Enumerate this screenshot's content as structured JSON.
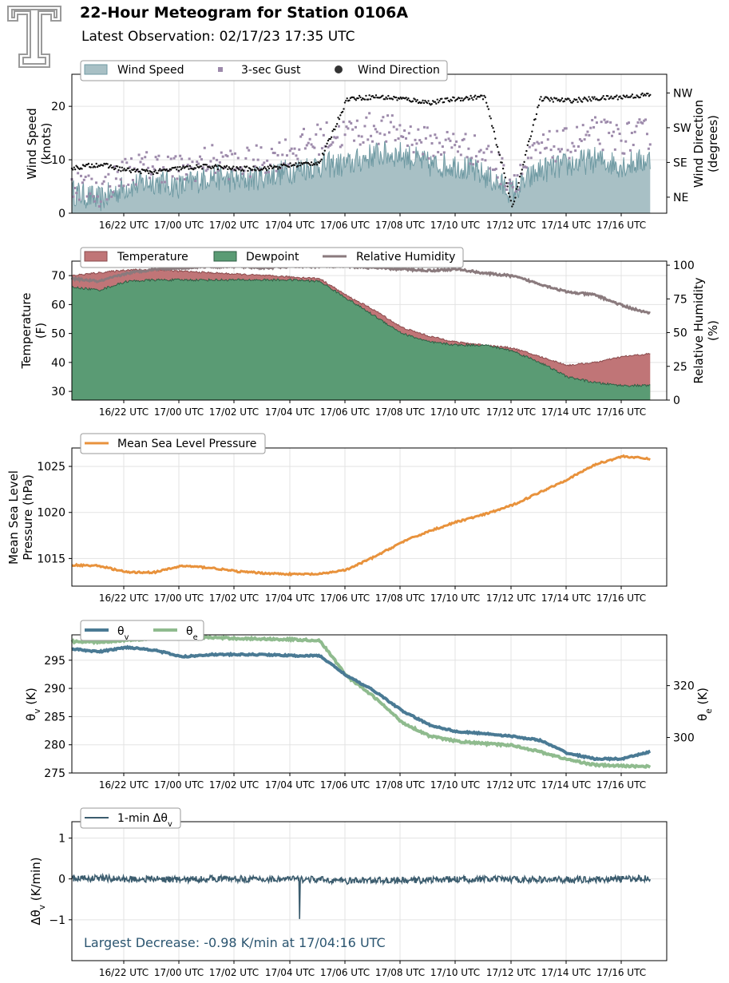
{
  "header": {
    "title": "22-Hour Meteogram for Station 0106A",
    "subtitle": "Latest Observation: 02/17/23 17:35 UTC",
    "logo_name": "texas-tech-double-t-logo"
  },
  "colors": {
    "wind_speed": "#6f9aa3",
    "gust": "#9d8aab",
    "wind_dir": "#111111",
    "temperature": "#c07577",
    "dewpoint": "#5a9b74",
    "rh": "#8a7a7d",
    "pressure": "#e8923c",
    "theta_v": "#4a7a94",
    "theta_e": "#8fbb8e",
    "delta_theta": "#3b5c6e",
    "annotation": "#2b5570"
  },
  "chart_data": [
    {
      "id": "wind",
      "type": "area",
      "time_ticks": [
        "16/22 UTC",
        "17/00 UTC",
        "17/02 UTC",
        "17/04 UTC",
        "17/06 UTC",
        "17/08 UTC",
        "17/10 UTC",
        "17/12 UTC",
        "17/14 UTC",
        "17/16 UTC"
      ],
      "ylabel": "Wind Speed\n(knots)",
      "ylabel_right": "Wind Direction\n(degrees)",
      "ylim": [
        0,
        26
      ],
      "yticks": [
        "0",
        "10",
        "20"
      ],
      "y2ticks": [
        "NE",
        "SE",
        "SW",
        "NW"
      ],
      "legend": [
        "Wind Speed",
        "3-sec Gust",
        "Wind Direction"
      ],
      "x_hours": [
        0,
        1,
        2,
        3,
        4,
        5,
        6,
        7,
        8,
        9,
        10,
        11,
        12,
        13,
        14,
        15,
        16,
        17,
        18,
        19,
        20,
        21
      ],
      "series": [
        {
          "name": "Wind Speed",
          "values": [
            4,
            2.5,
            5,
            6,
            5,
            7,
            6,
            7,
            8,
            9,
            9,
            11,
            11,
            9,
            9,
            7,
            4,
            8,
            9,
            10,
            9,
            10
          ]
        },
        {
          "name": "3-sec Gust",
          "values": [
            6,
            4,
            8,
            9,
            8,
            10,
            9,
            10,
            12,
            14,
            15,
            16,
            15,
            13,
            13,
            11,
            6,
            12,
            13,
            15,
            14,
            15
          ]
        },
        {
          "name": "Wind Direction",
          "values": [
            120,
            130,
            115,
            110,
            120,
            125,
            118,
            120,
            128,
            135,
            300,
            305,
            300,
            290,
            300,
            305,
            20,
            300,
            295,
            300,
            305,
            310
          ]
        }
      ]
    },
    {
      "id": "temperature",
      "type": "area",
      "time_ticks": [
        "16/22 UTC",
        "17/00 UTC",
        "17/02 UTC",
        "17/04 UTC",
        "17/06 UTC",
        "17/08 UTC",
        "17/10 UTC",
        "17/12 UTC",
        "17/14 UTC",
        "17/16 UTC"
      ],
      "ylabel": "Temperature\n(F)",
      "ylabel_right": "Relative Humidity\n(%)",
      "ylim": [
        27,
        75
      ],
      "yticks": [
        "30",
        "40",
        "50",
        "60",
        "70"
      ],
      "y2lim": [
        0,
        103
      ],
      "y2ticks": [
        "0",
        "25",
        "50",
        "75",
        "100"
      ],
      "legend": [
        "Temperature",
        "Dewpoint",
        "Relative Humidity"
      ],
      "x_hours": [
        0,
        1,
        2,
        3,
        4,
        5,
        6,
        7,
        8,
        9,
        10,
        11,
        12,
        13,
        14,
        15,
        16,
        17,
        18,
        19,
        20,
        21
      ],
      "series": [
        {
          "name": "Temperature",
          "values": [
            70,
            71,
            72,
            72,
            71.5,
            71,
            70.5,
            70,
            69.5,
            69,
            63,
            58,
            52,
            49,
            47,
            46,
            45,
            42,
            39,
            40,
            42,
            43
          ]
        },
        {
          "name": "Dewpoint",
          "values": [
            66,
            65,
            68,
            68.5,
            68.5,
            68.5,
            68.5,
            68.5,
            68.5,
            68,
            62,
            56,
            50,
            47,
            46,
            46,
            44,
            40,
            35,
            33,
            32,
            32
          ]
        },
        {
          "name": "Relative Humidity",
          "values": [
            90,
            88,
            94,
            97,
            98,
            99,
            99,
            98,
            99,
            99,
            99,
            98,
            97,
            96,
            97,
            94,
            92,
            86,
            80,
            78,
            70,
            64
          ]
        }
      ]
    },
    {
      "id": "pressure",
      "type": "line",
      "time_ticks": [
        "16/22 UTC",
        "17/00 UTC",
        "17/02 UTC",
        "17/04 UTC",
        "17/06 UTC",
        "17/08 UTC",
        "17/10 UTC",
        "17/12 UTC",
        "17/14 UTC",
        "17/16 UTC"
      ],
      "ylabel": "Mean Sea Level\nPressure (hPa)",
      "ylim": [
        1012,
        1027
      ],
      "yticks": [
        "1015",
        "1020",
        "1025"
      ],
      "legend": [
        "Mean Sea Level Pressure"
      ],
      "x_hours": [
        0,
        1,
        2,
        3,
        4,
        5,
        6,
        7,
        8,
        9,
        10,
        11,
        12,
        13,
        14,
        15,
        16,
        17,
        18,
        19,
        20,
        21
      ],
      "series": [
        {
          "name": "Mean Sea Level Pressure",
          "values": [
            1014.3,
            1014.2,
            1013.5,
            1013.5,
            1014.2,
            1014.0,
            1013.6,
            1013.4,
            1013.3,
            1013.3,
            1013.8,
            1015.2,
            1016.8,
            1018.0,
            1019.0,
            1019.8,
            1020.8,
            1022.2,
            1023.6,
            1025.2,
            1026.1,
            1025.8
          ]
        }
      ]
    },
    {
      "id": "theta",
      "type": "line",
      "time_ticks": [
        "16/22 UTC",
        "17/00 UTC",
        "17/02 UTC",
        "17/04 UTC",
        "17/06 UTC",
        "17/08 UTC",
        "17/10 UTC",
        "17/12 UTC",
        "17/14 UTC",
        "17/16 UTC"
      ],
      "ylabel": "θv (K)",
      "ylabel_right": "θe (K)",
      "ylim": [
        275,
        299.5
      ],
      "yticks": [
        "275",
        "280",
        "285",
        "290",
        "295"
      ],
      "y2lim": [
        286.3,
        339.6
      ],
      "y2ticks": [
        "300",
        "320"
      ],
      "legend": [
        "θv",
        "θe"
      ],
      "x_hours": [
        0,
        1,
        2,
        3,
        4,
        5,
        6,
        7,
        8,
        9,
        10,
        11,
        12,
        13,
        14,
        15,
        16,
        17,
        18,
        19,
        20,
        21
      ],
      "series": [
        {
          "name": "θv",
          "values": [
            297.0,
            296.5,
            297.3,
            296.8,
            295.6,
            296.0,
            296.0,
            296.0,
            295.8,
            295.8,
            292.2,
            289.5,
            286.0,
            283.5,
            282.3,
            282.0,
            281.5,
            280.8,
            278.5,
            277.5,
            277.5,
            278.8
          ]
        },
        {
          "name": "θe",
          "values": [
            337.0,
            336.8,
            337.6,
            338.2,
            338.4,
            338.6,
            338.2,
            338.0,
            337.8,
            337.4,
            323.5,
            315.4,
            305.8,
            300.5,
            298.5,
            297.6,
            297.0,
            294.5,
            291.5,
            289.4,
            289.0,
            288.8
          ]
        }
      ]
    },
    {
      "id": "delta_theta",
      "type": "line",
      "time_ticks": [
        "16/22 UTC",
        "17/00 UTC",
        "17/02 UTC",
        "17/04 UTC",
        "17/06 UTC",
        "17/08 UTC",
        "17/10 UTC",
        "17/12 UTC",
        "17/14 UTC",
        "17/16 UTC"
      ],
      "ylabel": "Δθv (K/min)",
      "ylim": [
        -2.0,
        1.4
      ],
      "yticks": [
        "−1",
        "0",
        "1"
      ],
      "legend": [
        "1-min Δθv"
      ],
      "annotation": "Largest Decrease: -0.98 K/min at 17/04:16 UTC",
      "x_hours": [
        0,
        1,
        2,
        3,
        4,
        5,
        6,
        7,
        8,
        9,
        10,
        11,
        12,
        13,
        14,
        15,
        16,
        17,
        18,
        19,
        20,
        21
      ],
      "series": [
        {
          "name": "1-min Δθv",
          "values": [
            0.0,
            0.02,
            -0.01,
            0.0,
            -0.02,
            0.01,
            0.0,
            -0.01,
            0.0,
            -0.02,
            -0.05,
            -0.03,
            -0.04,
            -0.02,
            -0.01,
            -0.01,
            -0.01,
            -0.02,
            -0.02,
            -0.01,
            0.0,
            0.02
          ]
        }
      ]
    }
  ]
}
